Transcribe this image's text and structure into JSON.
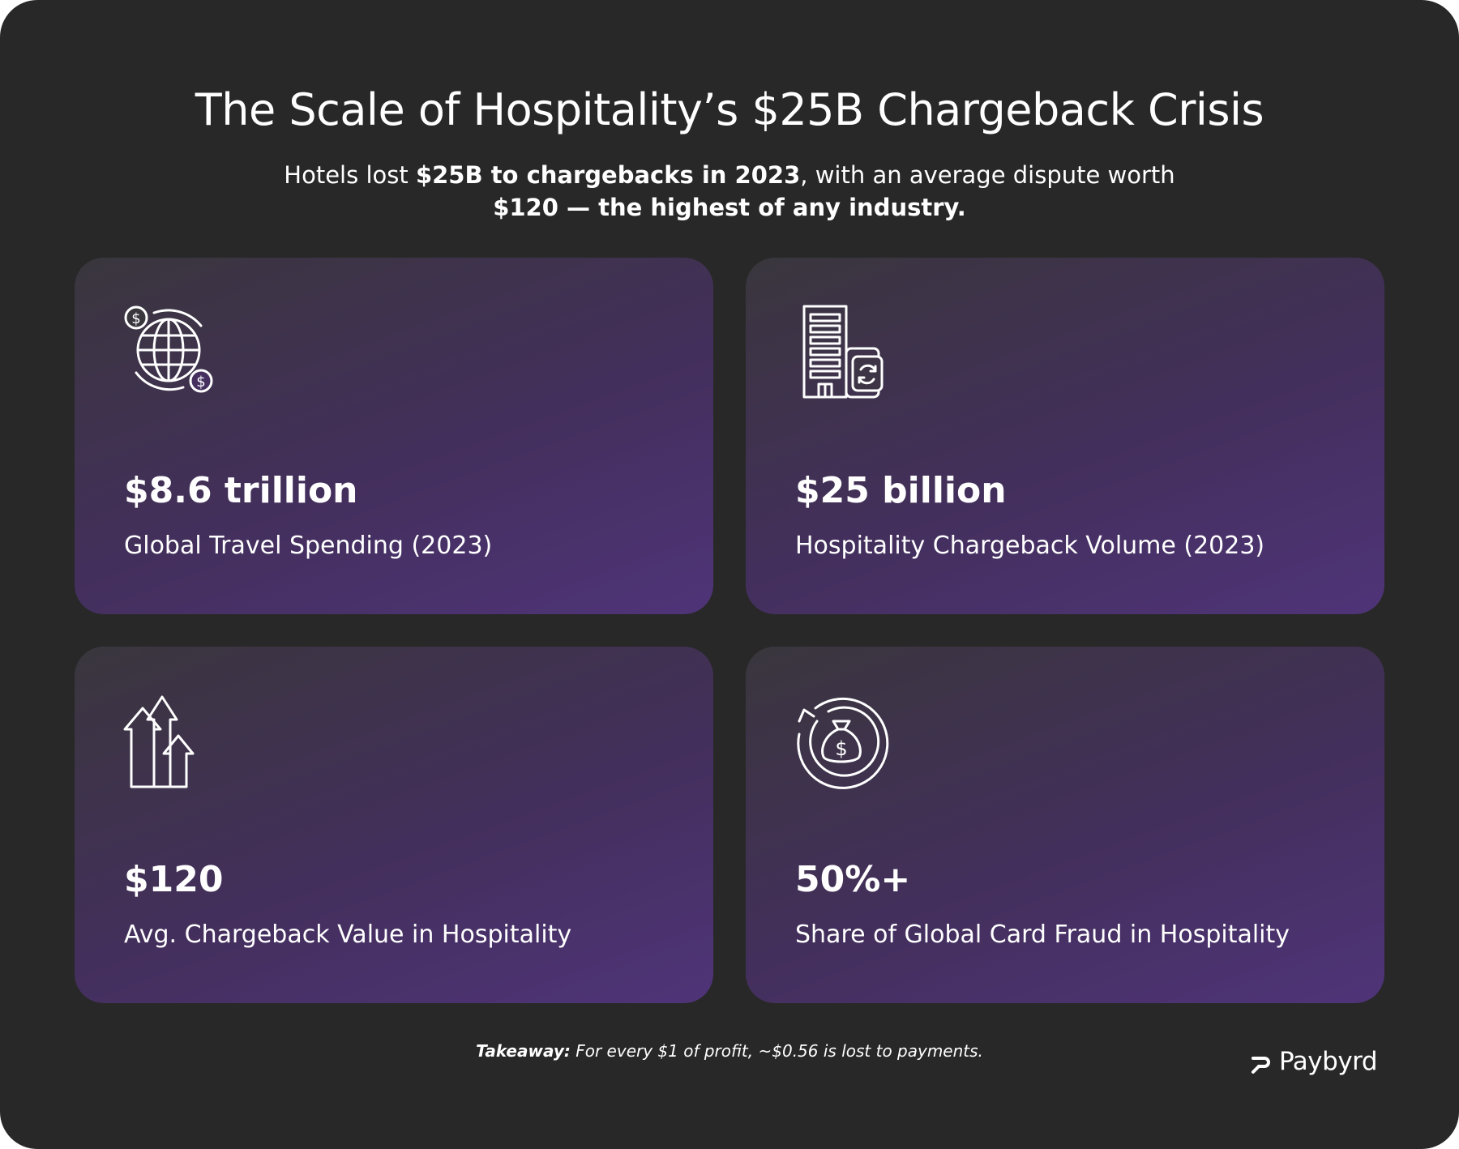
{
  "header": {
    "title": "The Scale of Hospitality’s $25B Chargeback Crisis",
    "subtitle_part1": "Hotels lost ",
    "subtitle_bold1": "$25B to chargebacks in 2023",
    "subtitle_part2": ", with an average dispute worth ",
    "subtitle_bold2": "$120 — the highest of any industry."
  },
  "cards": [
    {
      "icon": "globe-dollar-icon",
      "value": "$8.6 trillion",
      "label": "Global Travel Spending (2023)"
    },
    {
      "icon": "hotel-building-icon",
      "value": "$25 billion",
      "label": "Hospitality Chargeback Volume (2023)"
    },
    {
      "icon": "growth-arrows-icon",
      "value": "$120",
      "label": "Avg. Chargeback Value in Hospitality"
    },
    {
      "icon": "money-bag-cycle-icon",
      "value": "50%+",
      "label": "Share of Global Card Fraud in Hospitality"
    }
  ],
  "footer": {
    "takeaway_label": "Takeaway:",
    "takeaway_text": " For every $1 of profit, ~$0.56 is lost to payments.",
    "brand": "Paybyrd"
  },
  "colors": {
    "background": "#282828",
    "card_gradient_start": "#3a363d",
    "card_gradient_end": "#4f3478",
    "text": "#ffffff"
  }
}
